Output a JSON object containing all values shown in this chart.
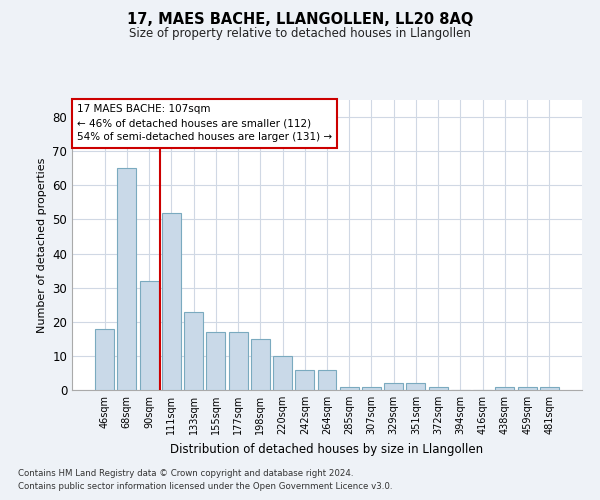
{
  "title": "17, MAES BACHE, LLANGOLLEN, LL20 8AQ",
  "subtitle": "Size of property relative to detached houses in Llangollen",
  "xlabel": "Distribution of detached houses by size in Llangollen",
  "ylabel": "Number of detached properties",
  "categories": [
    "46sqm",
    "68sqm",
    "90sqm",
    "111sqm",
    "133sqm",
    "155sqm",
    "177sqm",
    "198sqm",
    "220sqm",
    "242sqm",
    "264sqm",
    "285sqm",
    "307sqm",
    "329sqm",
    "351sqm",
    "372sqm",
    "394sqm",
    "416sqm",
    "438sqm",
    "459sqm",
    "481sqm"
  ],
  "values": [
    18,
    65,
    32,
    52,
    23,
    17,
    17,
    15,
    10,
    6,
    6,
    1,
    1,
    2,
    2,
    1,
    0,
    0,
    1,
    1,
    1
  ],
  "bar_color": "#c9d9e8",
  "bar_edge_color": "#7aaabf",
  "vline_x_index": 2.5,
  "vline_color": "#cc0000",
  "annotation_title": "17 MAES BACHE: 107sqm",
  "annotation_line1": "← 46% of detached houses are smaller (112)",
  "annotation_line2": "54% of semi-detached houses are larger (131) →",
  "annotation_box_color": "#ffffff",
  "annotation_box_edge": "#cc0000",
  "ylim": [
    0,
    85
  ],
  "yticks": [
    0,
    10,
    20,
    30,
    40,
    50,
    60,
    70,
    80
  ],
  "footnote1": "Contains HM Land Registry data © Crown copyright and database right 2024.",
  "footnote2": "Contains public sector information licensed under the Open Government Licence v3.0.",
  "background_color": "#eef2f7",
  "plot_bg_color": "#ffffff",
  "grid_color": "#d0d8e4"
}
